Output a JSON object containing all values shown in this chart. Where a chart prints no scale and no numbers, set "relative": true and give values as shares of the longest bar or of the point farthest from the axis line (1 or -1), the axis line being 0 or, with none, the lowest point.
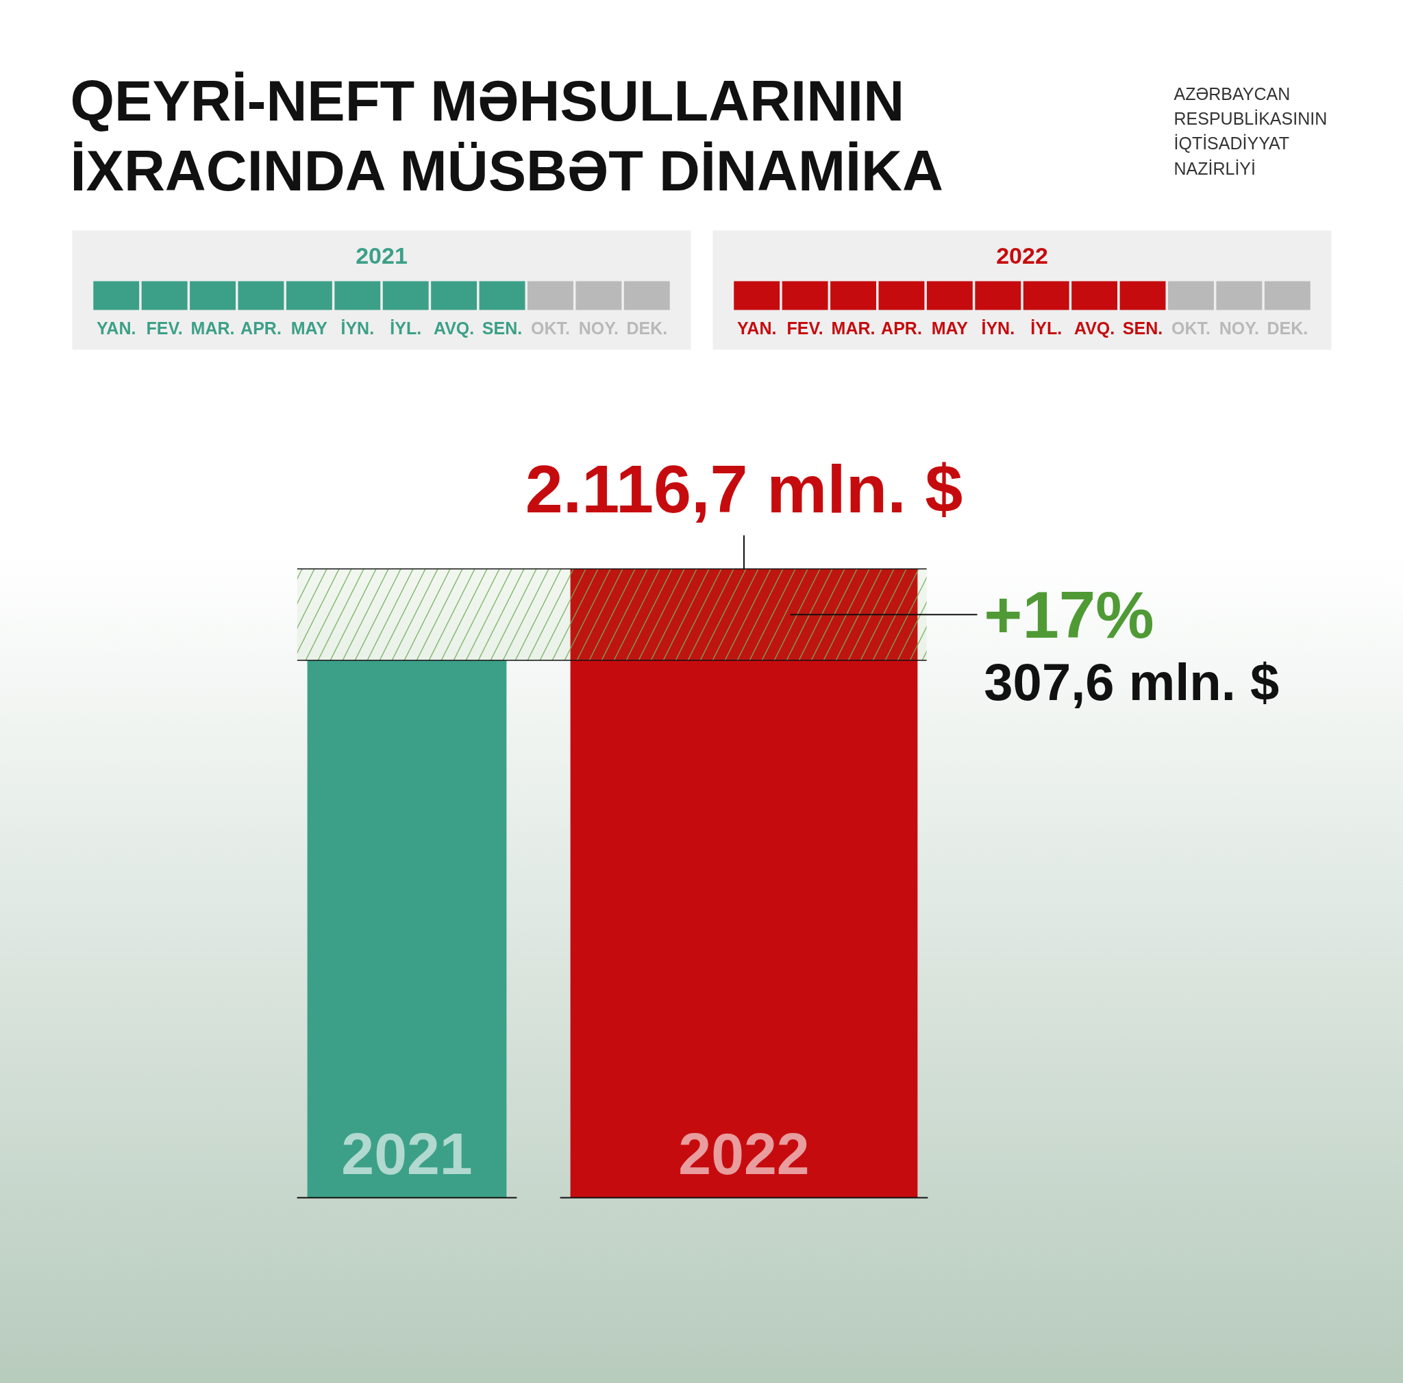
{
  "chart_data": [
    {
      "type": "bar",
      "title": "QEYRİ-NEFT MƏHSULLARININ İXRACINDA MÜSBƏT DİNAMİKA",
      "subtitle": "2021",
      "categories": [
        "YAN.",
        "FEV.",
        "MAR.",
        "APR.",
        "MAY",
        "İYN.",
        "İYL.",
        "AVQ.",
        "SEN.",
        "OKT.",
        "NOY.",
        "DEK."
      ],
      "values": [
        1,
        1,
        1,
        1,
        1,
        1,
        1,
        1,
        1,
        1,
        1,
        1
      ],
      "relative": true,
      "colors": [
        "#3ca088",
        "#3ca088",
        "#3ca088",
        "#3ca088",
        "#3ca088",
        "#3ca088",
        "#3ca088",
        "#3ca088",
        "#3ca088",
        "#b9b9b9",
        "#b9b9b9",
        "#b9b9b9"
      ]
    },
    {
      "type": "bar",
      "title": "2022",
      "categories": [
        "YAN.",
        "FEV.",
        "MAR.",
        "APR.",
        "MAY",
        "İYN.",
        "İYL.",
        "AVQ.",
        "SEN.",
        "OKT.",
        "NOY.",
        "DEK."
      ],
      "values": [
        1,
        1,
        1,
        1,
        1,
        1,
        1,
        1,
        1,
        1,
        1,
        1
      ],
      "relative": true,
      "colors": [
        "#c60b0e",
        "#c60b0e",
        "#c60b0e",
        "#c60b0e",
        "#c60b0e",
        "#c60b0e",
        "#c60b0e",
        "#c60b0e",
        "#c60b0e",
        "#b9b9b9",
        "#b9b9b9",
        "#b9b9b9"
      ]
    },
    {
      "type": "bar",
      "categories": [
        "2021",
        "2022"
      ],
      "values": [
        1809.1,
        2116.7
      ],
      "colors": [
        "#3ca088",
        "#c60b0e"
      ],
      "value_labels": [
        null,
        "2.116,7 mln. $"
      ],
      "tick_labels": "x",
      "bands": [
        {
          "axis": "y",
          "from": 1809.1,
          "to": 2116.7,
          "label": "+17%",
          "color": "#4f9a35"
        }
      ],
      "annotations": [
        "AZƏRBAYCAN RESPUBLİKASININ İQTİSADİYYAT NAZİRLİYİ",
        "307,6 mln. $"
      ]
    }
  ]
}
